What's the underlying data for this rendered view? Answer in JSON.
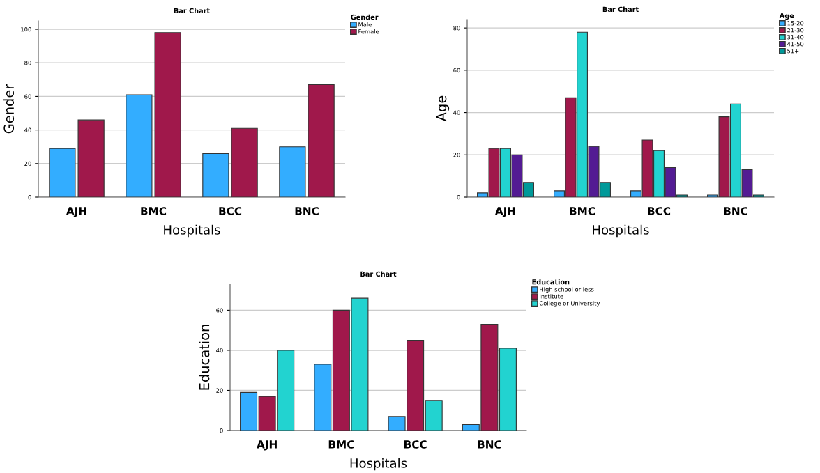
{
  "chart_data": [
    {
      "type": "bar",
      "title": "Bar Chart",
      "xlabel": "Hospitals",
      "ylabel": "Gender",
      "legend_title": "Gender",
      "legend": "top right",
      "grid": "y",
      "categories": [
        "AJH",
        "BMC",
        "BCC",
        "BNC"
      ],
      "ylim": [
        0,
        105
      ],
      "yticks": [
        0,
        20,
        40,
        60,
        80,
        100
      ],
      "series": [
        {
          "name": "Male",
          "color": "#33adff",
          "values": [
            29,
            61,
            26,
            30
          ]
        },
        {
          "name": "Female",
          "color": "#a0184b",
          "values": [
            46,
            98,
            41,
            67
          ]
        }
      ]
    },
    {
      "type": "bar",
      "title": "Bar Chart",
      "xlabel": "Hospitals",
      "ylabel": "Age",
      "legend_title": "Age",
      "legend": "top right",
      "grid": "y",
      "categories": [
        "AJH",
        "BMC",
        "BCC",
        "BNC"
      ],
      "ylim": [
        0,
        84
      ],
      "yticks": [
        0,
        20,
        40,
        60,
        80
      ],
      "series": [
        {
          "name": "15-20",
          "color": "#33adff",
          "values": [
            2,
            3,
            3,
            1
          ]
        },
        {
          "name": "21-30",
          "color": "#a0184b",
          "values": [
            23,
            47,
            27,
            38
          ]
        },
        {
          "name": "31-40",
          "color": "#22d3d0",
          "values": [
            23,
            78,
            22,
            44
          ]
        },
        {
          "name": "41-50",
          "color": "#531b93",
          "values": [
            20,
            24,
            14,
            13
          ]
        },
        {
          "name": "51+",
          "color": "#009999",
          "values": [
            7,
            7,
            1,
            1
          ]
        }
      ]
    },
    {
      "type": "bar",
      "title": "Bar Chart",
      "xlabel": "Hospitals",
      "ylabel": "Education",
      "legend_title": "Education",
      "legend": "top right",
      "grid": "y",
      "categories": [
        "AJH",
        "BMC",
        "BCC",
        "BNC"
      ],
      "ylim": [
        0,
        73
      ],
      "yticks": [
        0,
        20,
        40,
        60
      ],
      "series": [
        {
          "name": "High school or less",
          "color": "#33adff",
          "values": [
            19,
            33,
            7,
            3
          ]
        },
        {
          "name": "Institute",
          "color": "#a0184b",
          "values": [
            17,
            60,
            45,
            53
          ]
        },
        {
          "name": "College or University",
          "color": "#22d3d0",
          "values": [
            40,
            66,
            15,
            41
          ]
        }
      ]
    }
  ]
}
